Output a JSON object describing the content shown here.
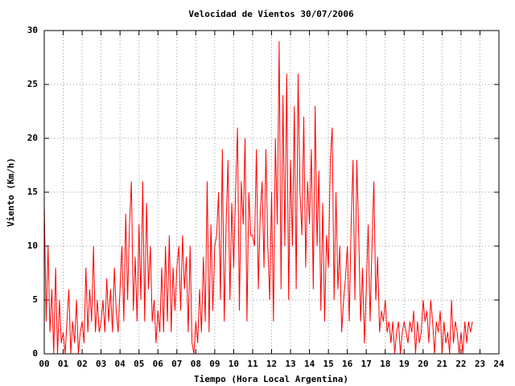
{
  "chart_data": {
    "type": "line",
    "title": "Velocidad de Vientos 30/07/2006",
    "x_label": "Tiempo (Hora Local Argentina)",
    "y_label": "Viento (Km/h)",
    "xlim": [
      0,
      24
    ],
    "ylim": [
      0,
      30
    ],
    "xticks": [
      {
        "value": 0,
        "label": "00"
      },
      {
        "value": 1,
        "label": "01"
      },
      {
        "value": 2,
        "label": "02"
      },
      {
        "value": 3,
        "label": "03"
      },
      {
        "value": 4,
        "label": "04"
      },
      {
        "value": 5,
        "label": "05"
      },
      {
        "value": 6,
        "label": "06"
      },
      {
        "value": 7,
        "label": "07"
      },
      {
        "value": 8,
        "label": "08"
      },
      {
        "value": 9,
        "label": "09"
      },
      10,
      11,
      12,
      13,
      14,
      15,
      16,
      17,
      18,
      19,
      20,
      21,
      22,
      23,
      24
    ],
    "yticks": [
      0,
      5,
      10,
      15,
      20,
      25,
      30
    ],
    "grid": true,
    "x": [
      0,
      0.1,
      0.2,
      0.3,
      0.4,
      0.5,
      0.6,
      0.7,
      0.8,
      0.9,
      1,
      1.1,
      1.2,
      1.3,
      1.4,
      1.5,
      1.6,
      1.7,
      1.8,
      1.9,
      2,
      2.1,
      2.2,
      2.3,
      2.4,
      2.5,
      2.6,
      2.7,
      2.8,
      2.9,
      3,
      3.1,
      3.2,
      3.3,
      3.4,
      3.5,
      3.6,
      3.7,
      3.8,
      3.9,
      4,
      4.1,
      4.2,
      4.3,
      4.4,
      4.5,
      4.6,
      4.7,
      4.8,
      4.9,
      5,
      5.1,
      5.2,
      5.3,
      5.4,
      5.5,
      5.6,
      5.7,
      5.8,
      5.9,
      6,
      6.1,
      6.2,
      6.3,
      6.4,
      6.5,
      6.6,
      6.7,
      6.8,
      6.9,
      7,
      7.1,
      7.2,
      7.3,
      7.4,
      7.5,
      7.6,
      7.7,
      7.8,
      7.9,
      8,
      8.1,
      8.2,
      8.3,
      8.4,
      8.5,
      8.6,
      8.7,
      8.8,
      8.9,
      9,
      9.1,
      9.2,
      9.3,
      9.4,
      9.5,
      9.6,
      9.7,
      9.8,
      9.9,
      10,
      10.1,
      10.2,
      10.3,
      10.4,
      10.5,
      10.6,
      10.7,
      10.8,
      10.9,
      11,
      11.1,
      11.2,
      11.3,
      11.4,
      11.5,
      11.6,
      11.7,
      11.8,
      11.9,
      12,
      12.1,
      12.2,
      12.3,
      12.4,
      12.5,
      12.6,
      12.7,
      12.8,
      12.9,
      13,
      13.1,
      13.2,
      13.3,
      13.4,
      13.5,
      13.6,
      13.7,
      13.8,
      13.9,
      14,
      14.1,
      14.2,
      14.3,
      14.4,
      14.5,
      14.6,
      14.7,
      14.8,
      14.9,
      15,
      15.1,
      15.2,
      15.3,
      15.4,
      15.5,
      15.6,
      15.7,
      15.8,
      15.9,
      16,
      16.1,
      16.2,
      16.3,
      16.4,
      16.5,
      16.6,
      16.7,
      16.8,
      16.9,
      17,
      17.1,
      17.2,
      17.3,
      17.4,
      17.5,
      17.6,
      17.7,
      17.8,
      17.9,
      18,
      18.1,
      18.2,
      18.3,
      18.4,
      18.5,
      18.6,
      18.7,
      18.8,
      18.9,
      19,
      19.1,
      19.2,
      19.3,
      19.4,
      19.5,
      19.6,
      19.7,
      19.8,
      19.9,
      20,
      20.1,
      20.2,
      20.3,
      20.4,
      20.5,
      20.6,
      20.7,
      20.8,
      20.9,
      21,
      21.1,
      21.2,
      21.3,
      21.4,
      21.5,
      21.6,
      21.7,
      21.8,
      21.9,
      22,
      22.1,
      22.2,
      22.3,
      22.4,
      22.5,
      22.6
    ],
    "series": [
      {
        "color": "#ff0000",
        "values": [
          14,
          3,
          10,
          2,
          6,
          0,
          8,
          0,
          5,
          1,
          2,
          0,
          3,
          6,
          0,
          3,
          1,
          5,
          0,
          2,
          3,
          1,
          8,
          2,
          6,
          3,
          10,
          2,
          5,
          2,
          3,
          5,
          2,
          7,
          3,
          6,
          2,
          8,
          4,
          2,
          6,
          10,
          3,
          13,
          5,
          12,
          16,
          4,
          9,
          3,
          12,
          5,
          16,
          3,
          14,
          6,
          10,
          3,
          5,
          1,
          4,
          2,
          8,
          2,
          10,
          3,
          11,
          2,
          8,
          4,
          8,
          10,
          4,
          11,
          6,
          9,
          2,
          10,
          1,
          0,
          3,
          1,
          6,
          2,
          9,
          3,
          16,
          2,
          12,
          4,
          10,
          11,
          15,
          5,
          19,
          3,
          12,
          18,
          5,
          14,
          8,
          15,
          21,
          4,
          16,
          12,
          20,
          3,
          15,
          11,
          11,
          10,
          19,
          6,
          13,
          16,
          8,
          19,
          10,
          5,
          15,
          3,
          20,
          12,
          29,
          6,
          24,
          10,
          26,
          5,
          18,
          10,
          23,
          6,
          26,
          15,
          11,
          22,
          8,
          16,
          12,
          19,
          6,
          23,
          10,
          17,
          4,
          14,
          3,
          11,
          8,
          18,
          21,
          5,
          15,
          6,
          10,
          2,
          5,
          7,
          10,
          3,
          12,
          18,
          5,
          18,
          11,
          3,
          8,
          1,
          6,
          12,
          3,
          10,
          16,
          5,
          9,
          2,
          4,
          3,
          5,
          2,
          3,
          1,
          3,
          0,
          2,
          3,
          0,
          2,
          3,
          2,
          1,
          3,
          2,
          4,
          0,
          3,
          1,
          2,
          5,
          3,
          4,
          1,
          5,
          3,
          0,
          3,
          2,
          4,
          0,
          3,
          1,
          2,
          0,
          5,
          1,
          3,
          2,
          0,
          2,
          0,
          3,
          1,
          3,
          2,
          3
        ]
      }
    ]
  }
}
